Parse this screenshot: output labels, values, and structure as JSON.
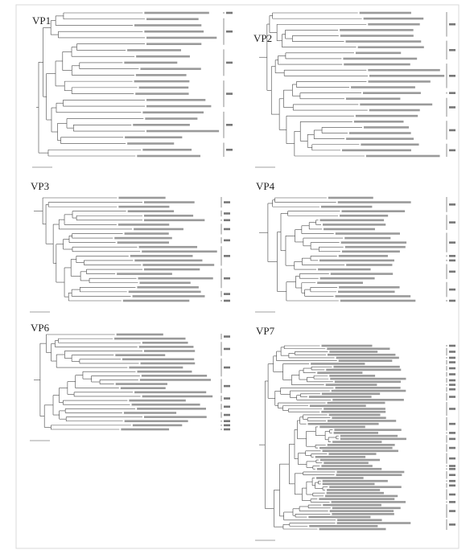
{
  "panels": [
    {
      "title": "VP1"
    },
    {
      "title": "VP2"
    },
    {
      "title": "VP3"
    },
    {
      "title": "VP4"
    },
    {
      "title": "VP6"
    },
    {
      "title": "VP7"
    }
  ]
}
